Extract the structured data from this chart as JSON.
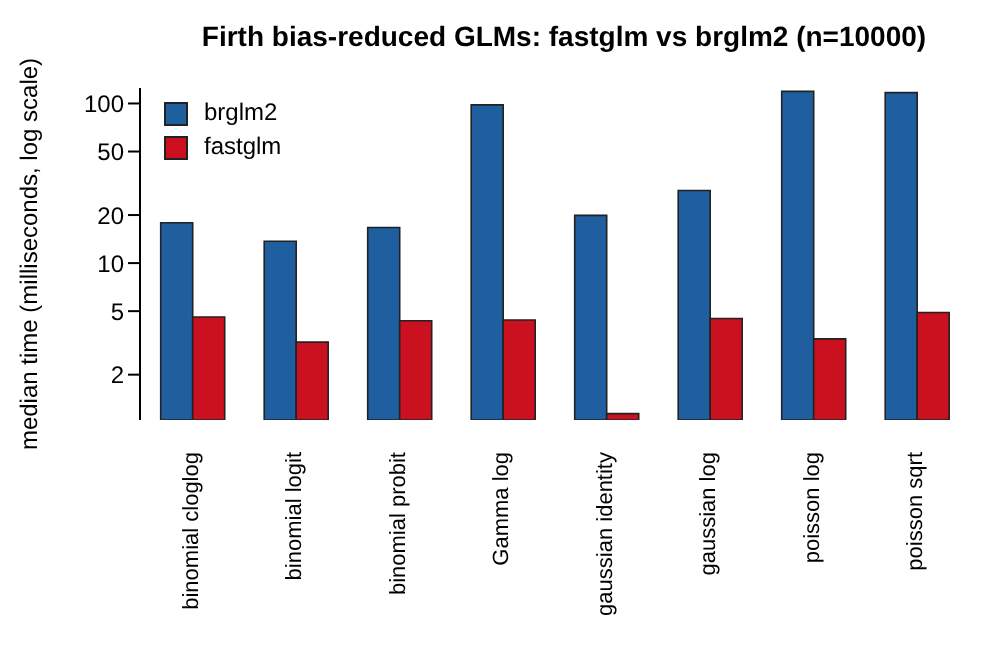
{
  "chart_data": {
    "type": "bar",
    "title": "Firth bias-reduced GLMs: fastglm vs brglm2 (n=10000)",
    "ylabel": "median time (milliseconds, log scale)",
    "categories": [
      "binomial cloglog",
      "binomial logit",
      "binomial probit",
      "Gamma log",
      "gaussian identity",
      "gaussian log",
      "poisson log",
      "poisson sqrt"
    ],
    "series": [
      {
        "name": "brglm2",
        "color": "#1f5fa0",
        "values": [
          17.9,
          13.7,
          16.7,
          98,
          19.9,
          28.5,
          119,
          117
        ]
      },
      {
        "name": "fastglm",
        "color": "#cb1020",
        "values": [
          4.6,
          3.2,
          4.35,
          4.4,
          1.14,
          4.5,
          3.35,
          4.9
        ]
      }
    ],
    "log": "y",
    "ylim": [
      1.04,
      125
    ],
    "yticks": [
      2,
      5,
      10,
      20,
      50,
      100
    ],
    "grid": false,
    "legend": "top left"
  }
}
